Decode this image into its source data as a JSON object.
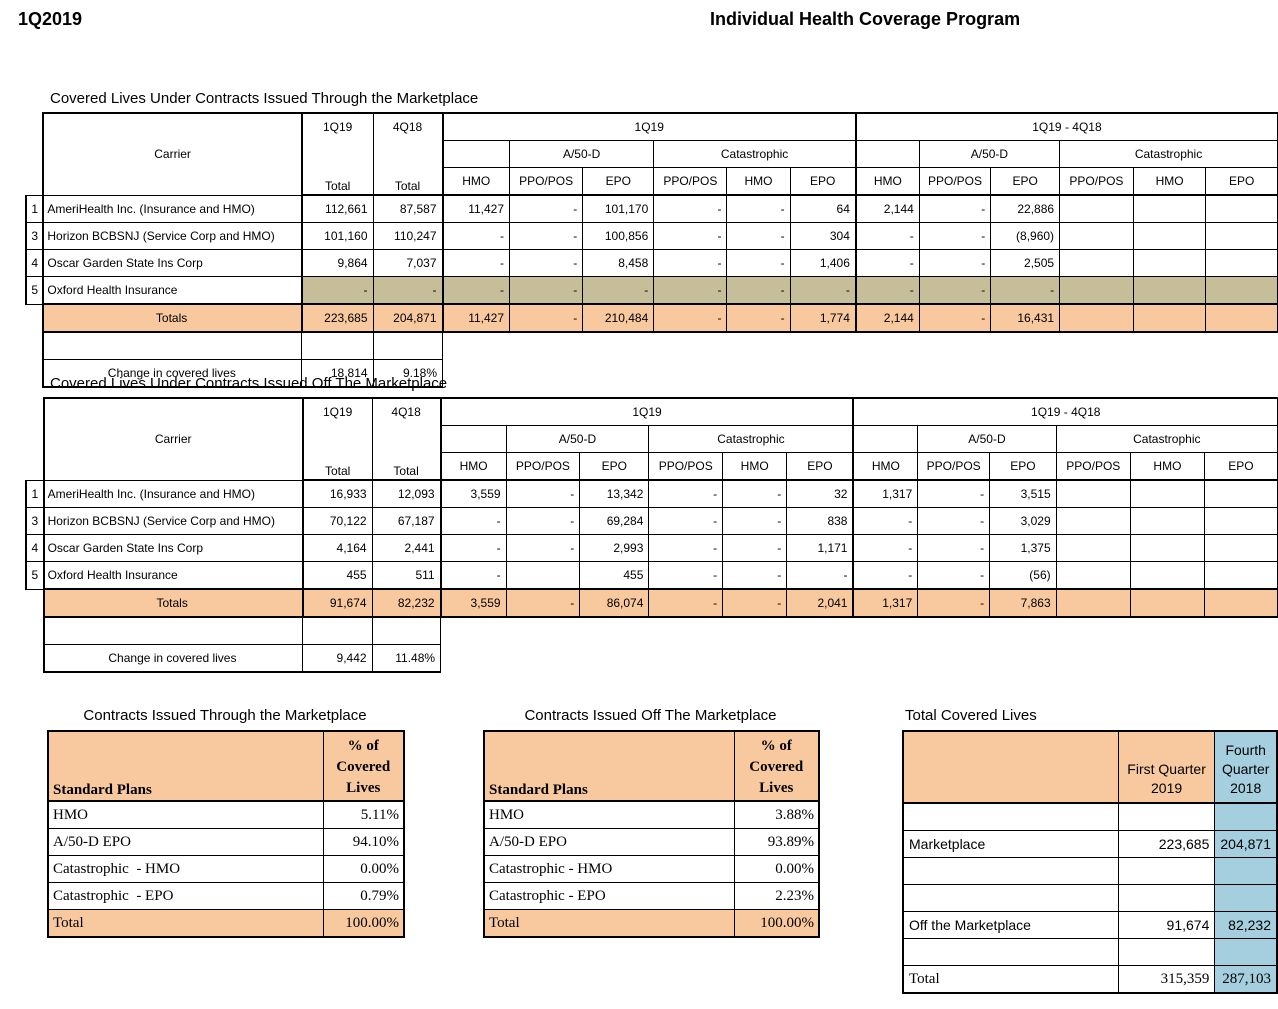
{
  "page": {
    "quarter_label": "1Q2019",
    "title": "Individual Health Coverage Program"
  },
  "colors": {
    "totals_fill": "#F8C89E",
    "suppressed_fill": "#C5BE98",
    "prior_quarter_fill": "#A5CFDE",
    "grid": "#000000"
  },
  "big_header": {
    "carrier": "Carrier",
    "current_quarter": "1Q19",
    "prior_quarter": "4Q18",
    "total": "Total",
    "group_current": "1Q19",
    "group_diff": "1Q19 - 4Q18",
    "subgroup_standard": "A/50-D",
    "subgroup_catastrophic": "Catastrophic"
  },
  "plan_headers": [
    "HMO",
    "PPO/POS",
    "EPO",
    "PPO/POS",
    "HMO",
    "EPO",
    "HMO",
    "PPO/POS",
    "EPO",
    "PPO/POS",
    "HMO",
    "EPO"
  ],
  "marketplace": {
    "section_title": "Covered Lives Under Contracts Issued Through the Marketplace",
    "rows": [
      {
        "num": "1",
        "carrier": "AmeriHealth  Inc. (Insurance and HMO)",
        "totals": [
          "112,661",
          "87,587"
        ],
        "values": [
          "11,427",
          "-",
          "101,170",
          "-",
          "-",
          "64",
          "2,144",
          "-",
          "22,886",
          "",
          "",
          ""
        ]
      },
      {
        "num": "3",
        "carrier": "Horizon BCBSNJ (Service Corp and HMO)",
        "totals": [
          "101,160",
          "110,247"
        ],
        "values": [
          "-",
          "-",
          "100,856",
          "-",
          "-",
          "304",
          "-",
          "-",
          "(8,960)",
          "",
          "",
          ""
        ]
      },
      {
        "num": "4",
        "carrier": "Oscar Garden State Ins Corp",
        "totals": [
          "9,864",
          "7,037"
        ],
        "values": [
          "-",
          "-",
          "8,458",
          "-",
          "-",
          "1,406",
          "-",
          "-",
          "2,505",
          "",
          "",
          ""
        ]
      },
      {
        "num": "5",
        "carrier": "Oxford Health Insurance",
        "shaded": true,
        "totals": [
          "-",
          "-"
        ],
        "values": [
          "-",
          "-",
          "-",
          "-",
          "-",
          "-",
          "-",
          "-",
          "-",
          "",
          "",
          ""
        ]
      }
    ],
    "totals_row": {
      "label": "Totals",
      "totals": [
        "223,685",
        "204,871"
      ],
      "values": [
        "11,427",
        "-",
        "210,484",
        "-",
        "-",
        "1,774",
        "2,144",
        "-",
        "16,431",
        "",
        "",
        ""
      ]
    },
    "change": {
      "label": "Change in covered lives",
      "value": "18,814",
      "pct": "9.18%"
    }
  },
  "off_marketplace": {
    "section_title": "Covered Lives Under Contracts Issued Off The Marketplace",
    "rows": [
      {
        "num": "1",
        "carrier": "AmeriHealth  Inc. (Insurance and HMO)",
        "totals": [
          "16,933",
          "12,093"
        ],
        "values": [
          "3,559",
          "-",
          "13,342",
          "-",
          "-",
          "32",
          "1,317",
          "-",
          "3,515",
          "",
          "",
          ""
        ]
      },
      {
        "num": "3",
        "carrier": "Horizon BCBSNJ (Service Corp and HMO)",
        "totals": [
          "70,122",
          "67,187"
        ],
        "values": [
          "-",
          "-",
          "69,284",
          "-",
          "-",
          "838",
          "-",
          "-",
          "3,029",
          "",
          "",
          ""
        ]
      },
      {
        "num": "4",
        "carrier": "Oscar Garden State Ins Corp",
        "totals": [
          "4,164",
          "2,441"
        ],
        "values": [
          "-",
          "-",
          "2,993",
          "-",
          "-",
          "1,171",
          "-",
          "-",
          "1,375",
          "",
          "",
          ""
        ]
      },
      {
        "num": "5",
        "carrier": "Oxford Health Insurance",
        "totals": [
          "455",
          "511"
        ],
        "values": [
          "-",
          "",
          "455",
          "-",
          "-",
          "-",
          "-",
          "-",
          "(56)",
          "",
          "",
          ""
        ]
      }
    ],
    "totals_row": {
      "label": "Totals",
      "totals": [
        "91,674",
        "82,232"
      ],
      "values": [
        "3,559",
        "-",
        "86,074",
        "-",
        "-",
        "2,041",
        "1,317",
        "-",
        "7,863",
        "",
        "",
        ""
      ]
    },
    "change": {
      "label": "Change in covered lives",
      "value": "9,442",
      "pct": "11.48%"
    }
  },
  "pct_marketplace": {
    "title": "Contracts Issued Through the Marketplace",
    "col_label": "Standard Plans",
    "col_value": "% of\nCovered\nLives",
    "rows": [
      [
        "HMO",
        "5.11%"
      ],
      [
        "A/50-D EPO",
        "94.10%"
      ],
      [
        "Catastrophic  - HMO",
        "0.00%"
      ],
      [
        "Catastrophic  - EPO",
        "0.79%"
      ]
    ],
    "total": [
      "Total",
      "100.00%"
    ]
  },
  "pct_off_marketplace": {
    "title": "Contracts Issued Off The Marketplace",
    "col_label": "Standard Plans",
    "col_value": "% of\nCovered\nLives",
    "rows": [
      [
        "HMO",
        "3.88%"
      ],
      [
        "A/50-D EPO",
        "93.89%"
      ],
      [
        "Catastrophic - HMO",
        "0.00%"
      ],
      [
        "Catastrophic - EPO",
        "2.23%"
      ]
    ],
    "total": [
      "Total",
      "100.00%"
    ]
  },
  "total_covered": {
    "title": "Total Covered Lives",
    "col_current": "First Quarter 2019",
    "col_prior_clipped": "Fourth Quarter 2018",
    "rows": [
      {
        "label": "",
        "current": "",
        "prior": ""
      },
      {
        "label": "Marketplace",
        "current": "223,685",
        "prior": "204,871"
      },
      {
        "label": "",
        "current": "",
        "prior": ""
      },
      {
        "label": "",
        "current": "",
        "prior": ""
      },
      {
        "label": "Off the Marketplace",
        "current": "91,674",
        "prior": "82,232"
      },
      {
        "label": "",
        "current": "",
        "prior": ""
      }
    ],
    "total": {
      "label": "Total",
      "current": "315,359",
      "prior": "287,103"
    }
  }
}
